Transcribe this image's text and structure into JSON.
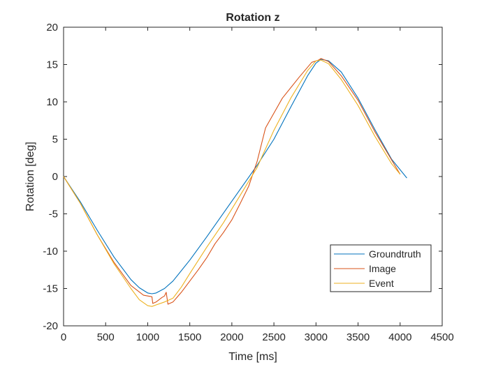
{
  "chart_data": {
    "type": "line",
    "title": "Rotation z",
    "xlabel": "Time [ms]",
    "ylabel": "Rotation [deg]",
    "xlim": [
      0,
      4500
    ],
    "ylim": [
      -20,
      20
    ],
    "xticks": [
      0,
      500,
      1000,
      1500,
      2000,
      2500,
      3000,
      3500,
      4000,
      4500
    ],
    "yticks": [
      -20,
      -15,
      -10,
      -5,
      0,
      5,
      10,
      15,
      20
    ],
    "grid": false,
    "legend_position": "lower-right",
    "series": [
      {
        "name": "Groundtruth",
        "color": "#0072BD",
        "points": [
          [
            0,
            0
          ],
          [
            200,
            -3.4
          ],
          [
            400,
            -7.2
          ],
          [
            600,
            -10.8
          ],
          [
            800,
            -13.8
          ],
          [
            900,
            -14.9
          ],
          [
            1000,
            -15.6
          ],
          [
            1050,
            -15.7
          ],
          [
            1100,
            -15.6
          ],
          [
            1200,
            -15
          ],
          [
            1300,
            -14
          ],
          [
            1500,
            -11.2
          ],
          [
            1700,
            -8.1
          ],
          [
            2000,
            -3.3
          ],
          [
            2300,
            1.5
          ],
          [
            2500,
            5
          ],
          [
            2700,
            9.3
          ],
          [
            2900,
            13.5
          ],
          [
            3000,
            15.2
          ],
          [
            3060,
            15.7
          ],
          [
            3150,
            15.5
          ],
          [
            3300,
            14
          ],
          [
            3500,
            10.5
          ],
          [
            3700,
            6.3
          ],
          [
            3900,
            2.3
          ],
          [
            4080,
            -0.2
          ]
        ]
      },
      {
        "name": "Image",
        "color": "#D95319",
        "points": [
          [
            0,
            0
          ],
          [
            200,
            -3.6
          ],
          [
            400,
            -7.8
          ],
          [
            600,
            -11.5
          ],
          [
            800,
            -14.6
          ],
          [
            950,
            -15.9
          ],
          [
            1050,
            -16.1
          ],
          [
            1060,
            -17
          ],
          [
            1100,
            -16.8
          ],
          [
            1170,
            -16.2
          ],
          [
            1200,
            -16
          ],
          [
            1220,
            -15.5
          ],
          [
            1240,
            -17.1
          ],
          [
            1300,
            -16.8
          ],
          [
            1400,
            -15.5
          ],
          [
            1500,
            -14
          ],
          [
            1600,
            -12.5
          ],
          [
            1700,
            -10.9
          ],
          [
            1800,
            -9
          ],
          [
            1900,
            -7.5
          ],
          [
            2000,
            -5.8
          ],
          [
            2100,
            -3.6
          ],
          [
            2200,
            -1.3
          ],
          [
            2300,
            2
          ],
          [
            2400,
            6.5
          ],
          [
            2500,
            8.5
          ],
          [
            2600,
            10.5
          ],
          [
            2800,
            13.3
          ],
          [
            2950,
            15.3
          ],
          [
            3030,
            15.6
          ],
          [
            3060,
            15.8
          ],
          [
            3150,
            15.4
          ],
          [
            3300,
            13.5
          ],
          [
            3500,
            10.2
          ],
          [
            3700,
            6
          ],
          [
            3900,
            2.2
          ],
          [
            4000,
            0.3
          ]
        ]
      },
      {
        "name": "Event",
        "color": "#EDB120",
        "points": [
          [
            0,
            0
          ],
          [
            200,
            -3.6
          ],
          [
            400,
            -7.8
          ],
          [
            600,
            -11.7
          ],
          [
            800,
            -15
          ],
          [
            900,
            -16.5
          ],
          [
            1000,
            -17.3
          ],
          [
            1050,
            -17.4
          ],
          [
            1100,
            -17.2
          ],
          [
            1200,
            -16.8
          ],
          [
            1300,
            -16.3
          ],
          [
            1400,
            -14.8
          ],
          [
            1500,
            -13
          ],
          [
            1700,
            -9.5
          ],
          [
            1900,
            -6.2
          ],
          [
            2100,
            -2.5
          ],
          [
            2300,
            1.2
          ],
          [
            2500,
            6.2
          ],
          [
            2700,
            10.5
          ],
          [
            2900,
            14.2
          ],
          [
            3000,
            15.5
          ],
          [
            3060,
            15.6
          ],
          [
            3150,
            15.1
          ],
          [
            3300,
            13
          ],
          [
            3500,
            9.5
          ],
          [
            3700,
            5.4
          ],
          [
            3900,
            1.7
          ],
          [
            4000,
            0.3
          ]
        ]
      }
    ]
  }
}
